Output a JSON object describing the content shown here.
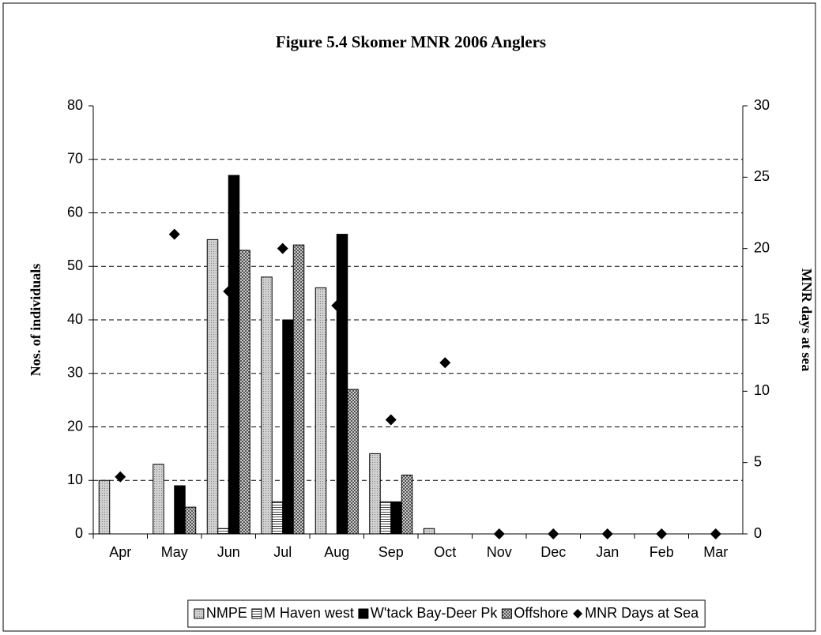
{
  "chart_data": {
    "type": "bar",
    "title": "Figure 5.4 Skomer MNR 2006 Anglers",
    "y_label": "Nos. of individuals",
    "y2_label": "MNR days at sea",
    "categories": [
      "Apr",
      "May",
      "Jun",
      "Jul",
      "Aug",
      "Sep",
      "Oct",
      "Nov",
      "Dec",
      "Jan",
      "Feb",
      "Mar"
    ],
    "series": [
      {
        "name": "NMPE",
        "color": "#c0c0c0",
        "pattern": "dots",
        "values": [
          10,
          13,
          55,
          48,
          46,
          15,
          1,
          0,
          0,
          0,
          0,
          0
        ]
      },
      {
        "name": "M Haven west",
        "color": "#ffffff",
        "pattern": "hlines",
        "values": [
          0,
          0,
          1,
          6,
          0,
          6,
          0,
          0,
          0,
          0,
          0,
          0
        ]
      },
      {
        "name": "W'tack Bay-Deer Pk",
        "color": "#000000",
        "pattern": "solid",
        "values": [
          0,
          9,
          67,
          40,
          56,
          6,
          0,
          0,
          0,
          0,
          0,
          0
        ]
      },
      {
        "name": "Offshore",
        "color": "#a0a0a0",
        "pattern": "check",
        "values": [
          0,
          5,
          53,
          54,
          27,
          11,
          0,
          0,
          0,
          0,
          0,
          0
        ]
      },
      {
        "name": "MNR Days at Sea",
        "color": "#000000",
        "type": "scatter",
        "axis": "y2",
        "values": [
          4,
          21,
          17,
          20,
          16,
          8,
          12,
          0,
          0,
          0,
          0,
          0
        ]
      }
    ],
    "ylim": [
      0,
      80
    ],
    "yticks": [
      0,
      10,
      20,
      30,
      40,
      50,
      60,
      70,
      80
    ],
    "y2lim": [
      0,
      30
    ],
    "y2ticks": [
      0,
      5,
      10,
      15,
      20,
      25,
      30
    ],
    "grid": true,
    "legend": "bottom"
  }
}
